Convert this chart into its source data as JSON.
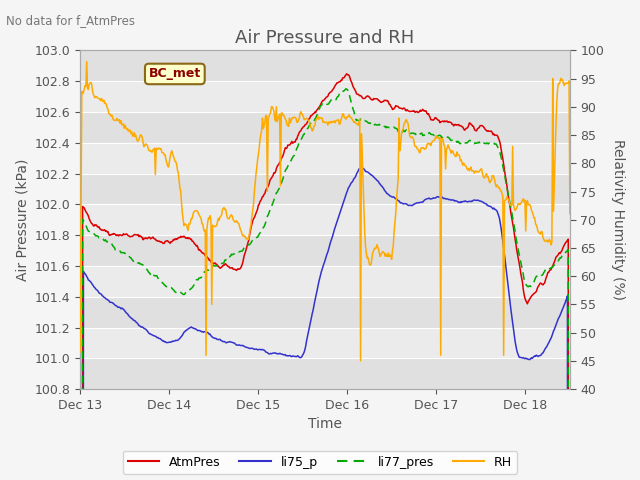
{
  "title": "Air Pressure and RH",
  "subtitle": "No data for f_AtmPres",
  "xlabel": "Time",
  "ylabel_left": "Air Pressure (kPa)",
  "ylabel_right": "Relativity Humidity (%)",
  "ylim_left": [
    100.8,
    103.0
  ],
  "ylim_right": [
    40,
    100
  ],
  "yticks_left": [
    100.8,
    101.0,
    101.2,
    101.4,
    101.6,
    101.8,
    102.0,
    102.2,
    102.4,
    102.6,
    102.8,
    103.0
  ],
  "yticks_right": [
    40,
    45,
    50,
    55,
    60,
    65,
    70,
    75,
    80,
    85,
    90,
    95,
    100
  ],
  "xtick_labels": [
    "Dec 13",
    "Dec 14",
    "Dec 15",
    "Dec 16",
    "Dec 17",
    "Dec 18"
  ],
  "legend_labels": [
    "AtmPres",
    "li75_p",
    "li77_pres",
    "RH"
  ],
  "legend_colors": [
    "#dd0000",
    "#3333cc",
    "#00aa00",
    "#ffaa00"
  ],
  "legend_linestyles": [
    "-",
    "-",
    "--",
    "-"
  ],
  "annotation_text": "BC_met",
  "background_color": "#f5f5f5",
  "stripe_colors": [
    "#e8e8e8",
    "#f0f0f0"
  ],
  "grid_color": "#ffffff",
  "title_fontsize": 13,
  "label_fontsize": 10,
  "tick_fontsize": 9
}
